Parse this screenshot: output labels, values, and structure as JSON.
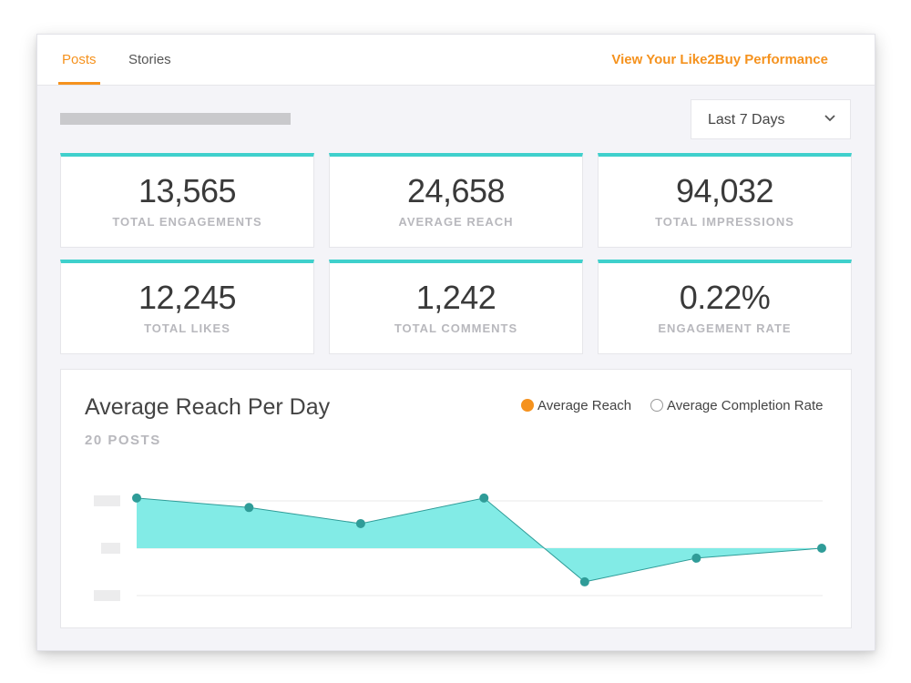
{
  "tabs": [
    {
      "label": "Posts",
      "active": true
    },
    {
      "label": "Stories",
      "active": false
    }
  ],
  "performance_link": "View Your Like2Buy Performance",
  "date_range": {
    "selected": "Last 7 Days"
  },
  "colors": {
    "accent": "#f5921e",
    "teal": "#3fd0cc",
    "point": "#2f9c98",
    "area": "#82ebe6"
  },
  "stats": [
    {
      "value": "13,565",
      "label": "TOTAL ENGAGEMENTS"
    },
    {
      "value": "24,658",
      "label": "AVERAGE REACH"
    },
    {
      "value": "94,032",
      "label": "TOTAL IMPRESSIONS"
    },
    {
      "value": "12,245",
      "label": "TOTAL LIKES"
    },
    {
      "value": "1,242",
      "label": "TOTAL COMMENTS"
    },
    {
      "value": "0.22%",
      "label": "ENGAGEMENT RATE"
    }
  ],
  "chart": {
    "title": "Average Reach Per Day",
    "subtitle": "20 POSTS",
    "legend": [
      {
        "label": "Average Reach",
        "filled": true
      },
      {
        "label": "Average Completion Rate",
        "filled": false
      }
    ]
  },
  "chart_data": {
    "type": "area",
    "title": "Average Reach Per Day",
    "x": [
      1,
      2,
      3,
      4,
      5,
      6,
      7
    ],
    "series": [
      {
        "name": "Average Reach",
        "values": [
          1.06,
          0.86,
          0.52,
          1.06,
          -0.71,
          -0.21,
          0.0
        ]
      }
    ],
    "ylim": [
      -1,
      1
    ],
    "grid": true,
    "axis_labels_hidden": true
  }
}
